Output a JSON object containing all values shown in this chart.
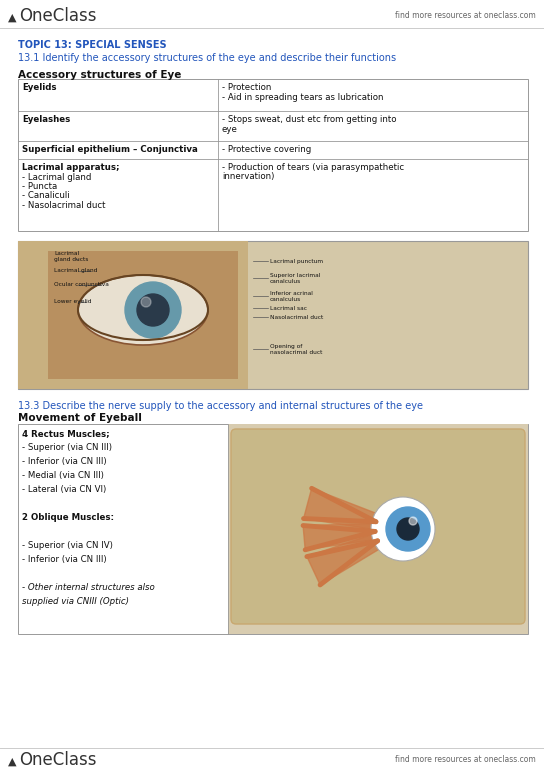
{
  "bg_color": "#ffffff",
  "header_right_text": "find more resources at oneclass.com",
  "footer_right_text": "find more resources at oneclass.com",
  "topic_text": "TOPIC 13: SPECIAL SENSES",
  "section1_heading": "13.1 Identify the accessory structures of the eye and describe their functions",
  "table_title": "Accessory structures of Eye",
  "table_rows": [
    [
      "Eyelids",
      "- Protection\n- Aid in spreading tears as lubrication"
    ],
    [
      "Eyelashes",
      "- Stops sweat, dust etc from getting into\neye"
    ],
    [
      "Superficial epithelium – Conjunctiva",
      "- Protective covering"
    ],
    [
      "Lacrimal apparatus;\n- Lacrimal gland\n- Puncta\n- Canaliculi\n- Nasolacrimal duct",
      "- Production of tears (via parasympathetic\ninnervation)"
    ]
  ],
  "section2_heading": "13.3 Describe the nerve supply to the accessory and internal structures of the eye",
  "movement_title": "Movement of Eyeball",
  "move_lines": [
    [
      "4 Rectus Muscles;",
      true,
      false
    ],
    [
      "- Superior (via CN III)",
      false,
      false
    ],
    [
      "- Inferior (via CN III)",
      false,
      false
    ],
    [
      "- Medial (via CN III)",
      false,
      false
    ],
    [
      "- Lateral (via CN VI)",
      false,
      false
    ],
    [
      "",
      false,
      false
    ],
    [
      "2 Oblique Muscles:",
      true,
      false
    ],
    [
      "",
      false,
      false
    ],
    [
      "- Superior (via CN IV)",
      false,
      false
    ],
    [
      "- Inferior (via CN III)",
      false,
      false
    ],
    [
      "",
      false,
      false
    ],
    [
      "- Other internal structures also",
      false,
      true
    ],
    [
      "supplied via CNIII (Optic)",
      false,
      true
    ]
  ],
  "blue_color": "#2255BB",
  "border_color": "#999999",
  "text_color": "#111111",
  "logo_color": "#333333",
  "header_text_color": "#666666",
  "eye_labels_left": [
    [
      "Lacrimal\ngland ducts",
      36,
      10
    ],
    [
      "Lacrimal gland",
      36,
      27
    ],
    [
      "Ocular conjunctiva",
      36,
      41
    ],
    [
      "Lower eyelid",
      36,
      58
    ]
  ],
  "eye_labels_right": [
    [
      "Lacrimal punctum",
      252,
      18
    ],
    [
      "Superior lacrimal\ncanalculus",
      252,
      32
    ],
    [
      "Inferior acrinal\ncanalculus",
      252,
      50
    ],
    [
      "Lacrimal sac",
      252,
      65
    ],
    [
      "Nasolacrimal duct",
      252,
      74
    ],
    [
      "Opening of\nnasolacrimal duct",
      252,
      103
    ]
  ],
  "img1_bg": "#d4c8a8",
  "img1_eye_bg": "#c8b898",
  "img2_bg": "#d8ccb0"
}
